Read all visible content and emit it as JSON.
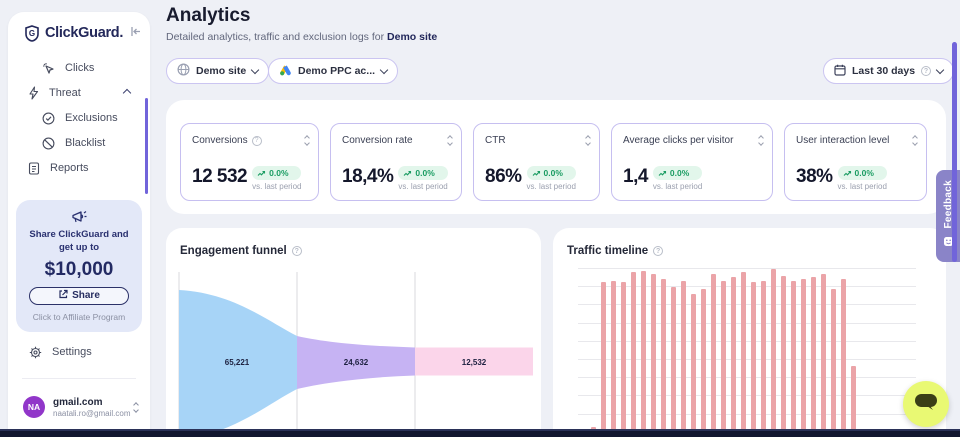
{
  "sidebar": {
    "logo_text": "ClickGuard.",
    "nav": [
      {
        "label": "Clicks"
      },
      {
        "label": "Threat",
        "expanded": true
      },
      {
        "label": "Exclusions"
      },
      {
        "label": "Blacklist"
      },
      {
        "label": "Reports"
      }
    ],
    "promo": {
      "line1": "Share ClickGuard and",
      "line2": "get up to",
      "amount": "$10,000",
      "button_label": "Share",
      "footer": "Click to Affiliate Program"
    },
    "settings_label": "Settings",
    "account": {
      "initials": "NA",
      "name": "gmail.com",
      "email": "naatali.ro@gmail.com"
    }
  },
  "header": {
    "title": "Analytics",
    "subtitle": "Detailed analytics, traffic and exclusion logs for",
    "subtitle_target": "Demo site",
    "site_selector": "Demo site",
    "ppc_selector": "Demo PPC ac...",
    "date_range": "Last 30 days"
  },
  "metrics": [
    {
      "label": "Conversions",
      "value": "12 532",
      "change": "0.0%",
      "compare": "vs. last period",
      "has_info": true
    },
    {
      "label": "Conversion rate",
      "value": "18,4%",
      "change": "0.0%",
      "compare": "vs. last period"
    },
    {
      "label": "CTR",
      "value": "86%",
      "change": "0.0%",
      "compare": "vs. last period"
    },
    {
      "label": "Average clicks per visitor",
      "value": "1,4",
      "change": "0.0%",
      "compare": "vs. last period"
    },
    {
      "label": "User interaction level",
      "value": "38%",
      "change": "0.0%",
      "compare": "vs. last period"
    }
  ],
  "feedback_label": "Feedback",
  "chart_data": [
    {
      "type": "area",
      "subtype": "funnel",
      "title": "Engagement funnel",
      "stages": [
        {
          "label": "65,221",
          "value": 65221,
          "color": "#a7d4f7"
        },
        {
          "label": "24,632",
          "value": 24632,
          "color": "#c6b3f3"
        },
        {
          "label": "12,532",
          "value": 12532,
          "color": "#fbd5ea"
        }
      ],
      "legend": "none",
      "grid": "vertical-dividers"
    },
    {
      "type": "bar",
      "title": "Traffic timeline",
      "xlabel": "",
      "ylabel": "",
      "note": "daily bars over last 30 days; y-axis labels cut off below viewport, values are relative heights (% of max)",
      "color": "#eba4a8",
      "grid": "horizontal",
      "values": [
        6,
        92,
        93,
        92,
        98,
        99,
        97,
        94,
        89,
        93,
        85,
        88,
        97,
        93,
        95,
        98,
        92,
        93,
        100,
        96,
        93,
        94,
        95,
        97,
        88,
        94,
        42
      ]
    }
  ],
  "colors": {
    "accent_purple": "#7164da",
    "card_border": "#c6bff0",
    "badge_green_bg": "#e2f6eb",
    "badge_green_text": "#1a9c62",
    "bar_pink": "#eba4a8",
    "funnel_blue": "#a7d4f7",
    "funnel_purple": "#c6b3f3",
    "funnel_pink": "#fbd5ea",
    "feedback_tab": "#8a84c8",
    "chat_button": "#e9f973",
    "promo_bg": "#e3e8f8",
    "navy": "#23285a"
  }
}
